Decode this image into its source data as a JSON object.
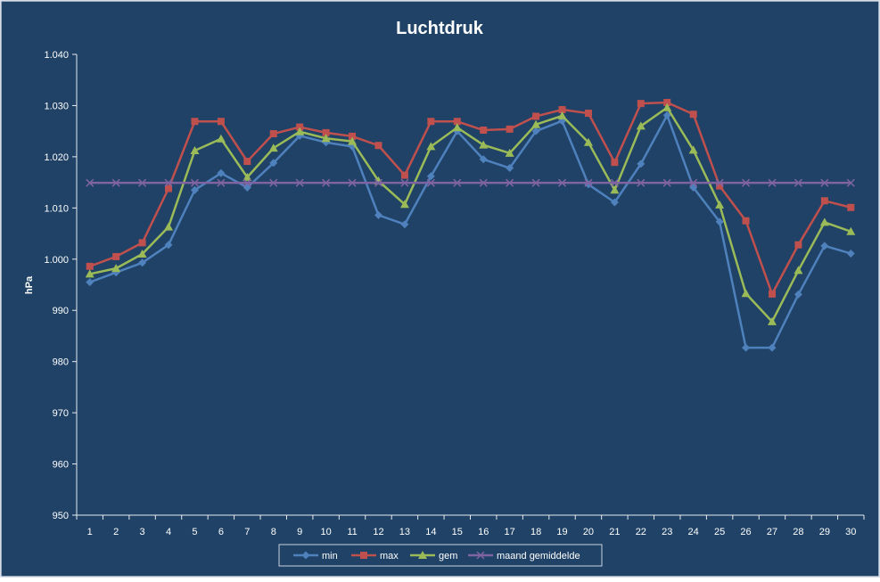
{
  "chart_data": {
    "type": "line",
    "title": "Luchtdruk",
    "xlabel": "",
    "ylabel": "hPa",
    "ylim": [
      950,
      1040
    ],
    "yticks": [
      "950",
      "960",
      "970",
      "980",
      "990",
      "1.000",
      "1.010",
      "1.020",
      "1.030",
      "1.040"
    ],
    "ytick_values": [
      950,
      960,
      970,
      980,
      990,
      1000,
      1010,
      1020,
      1030,
      1040
    ],
    "categories": [
      "1",
      "2",
      "3",
      "4",
      "5",
      "6",
      "7",
      "8",
      "9",
      "10",
      "11",
      "12",
      "13",
      "14",
      "15",
      "16",
      "17",
      "18",
      "19",
      "20",
      "21",
      "22",
      "23",
      "24",
      "25",
      "26",
      "27",
      "28",
      "29",
      "30"
    ],
    "grid": false,
    "legend_position": "bottom",
    "series": [
      {
        "name": "min",
        "color": "#4f81bd",
        "marker": "diamond",
        "values": [
          995.5,
          997.4,
          999.3,
          1002.8,
          1013.5,
          1016.8,
          1014.0,
          1018.8,
          1024.1,
          1022.8,
          1022.0,
          1008.6,
          1006.8,
          1016.2,
          1025.0,
          1019.5,
          1017.8,
          1025.0,
          1027.0,
          1014.6,
          1011.1,
          1018.6,
          1028.1,
          1014.0,
          1007.3,
          982.7,
          982.7,
          993.1,
          1002.6,
          1001.1
        ]
      },
      {
        "name": "max",
        "color": "#c0504d",
        "marker": "square",
        "values": [
          998.6,
          1000.5,
          1003.2,
          1013.8,
          1026.9,
          1026.9,
          1019.1,
          1024.5,
          1025.8,
          1024.7,
          1024.0,
          1022.2,
          1016.4,
          1026.9,
          1026.9,
          1025.2,
          1025.4,
          1027.9,
          1029.2,
          1028.5,
          1018.9,
          1030.4,
          1030.6,
          1028.3,
          1014.3,
          1007.5,
          993.2,
          1002.8,
          1011.4,
          1010.1
        ]
      },
      {
        "name": "gem",
        "color": "#9bbb59",
        "marker": "triangle",
        "values": [
          997.1,
          998.2,
          1001.0,
          1006.3,
          1021.2,
          1023.5,
          1016.0,
          1021.7,
          1024.9,
          1023.6,
          1023.0,
          1015.3,
          1010.7,
          1022.0,
          1025.7,
          1022.3,
          1020.7,
          1026.3,
          1028.0,
          1022.8,
          1013.5,
          1026.0,
          1029.6,
          1021.3,
          1010.6,
          993.3,
          987.8,
          997.8,
          1007.2,
          1005.4
        ]
      },
      {
        "name": "maand gemiddelde",
        "color": "#8064a2",
        "marker": "x",
        "values": [
          1014.9,
          1014.9,
          1014.9,
          1014.9,
          1014.9,
          1014.9,
          1014.9,
          1014.9,
          1014.9,
          1014.9,
          1014.9,
          1014.9,
          1014.9,
          1014.9,
          1014.9,
          1014.9,
          1014.9,
          1014.9,
          1014.9,
          1014.9,
          1014.9,
          1014.9,
          1014.9,
          1014.9,
          1014.9,
          1014.9,
          1014.9,
          1014.9,
          1014.9,
          1014.9
        ]
      }
    ]
  },
  "colors": {
    "background": "#1f4266",
    "frame": "#c7d2de",
    "text": "#ffffff",
    "axis": "#e6ebf1"
  }
}
